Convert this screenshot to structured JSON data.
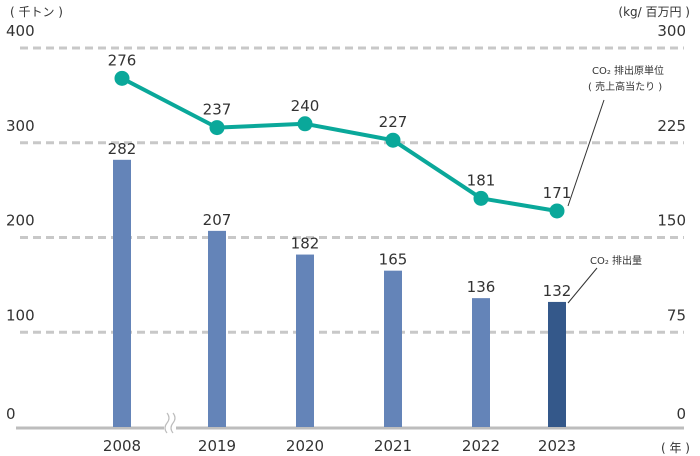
{
  "chart_data": {
    "type": "bar+line",
    "categories": [
      "2008",
      "2019",
      "2020",
      "2021",
      "2022",
      "2023"
    ],
    "left_axis": {
      "unit_label": "( 千トン )",
      "ticks": [
        "0",
        "100",
        "200",
        "300",
        "400"
      ],
      "range": [
        0,
        400
      ]
    },
    "right_axis": {
      "unit_label": "(kg/ 百万円 )",
      "ticks": [
        "0",
        "75",
        "150",
        "225",
        "300"
      ],
      "range": [
        0,
        300
      ]
    },
    "x_unit_label": "( 年 )",
    "grid": "dashed-horizontal",
    "axis_break_after": "2008",
    "series": [
      {
        "name": "CO₂ 排出量",
        "kind": "bar",
        "axis": "left",
        "values": [
          282,
          207,
          182,
          165,
          136,
          132
        ],
        "labels": [
          "282",
          "207",
          "182",
          "165",
          "136",
          "132"
        ],
        "color": "#6484b8",
        "highlight_color": "#34588a"
      },
      {
        "name": "CO₂ 排出原単位\n( 売上高当たり )",
        "kind": "line",
        "axis": "right",
        "values": [
          276,
          237,
          240,
          227,
          181,
          171
        ],
        "labels": [
          "276",
          "237",
          "240",
          "227",
          "181",
          "171"
        ],
        "color": "#0aa89a"
      }
    ],
    "annotations": {
      "bar_callout": "CO₂ 排出量",
      "line_callout_line1": "CO₂ 排出原単位",
      "line_callout_line2": "( 売上高当たり )"
    }
  }
}
